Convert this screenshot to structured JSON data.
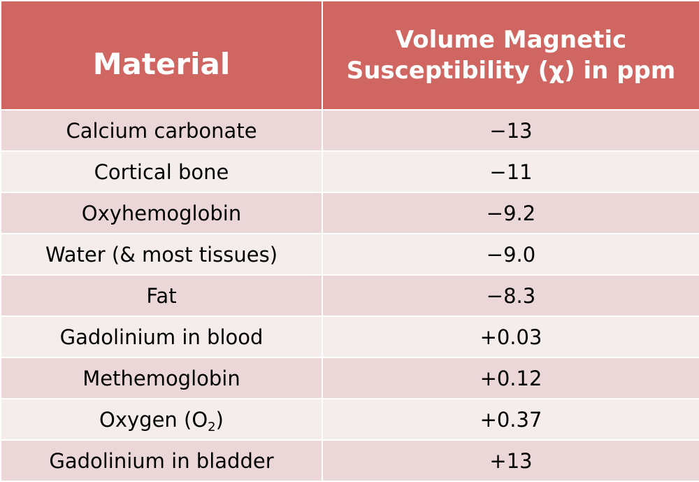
{
  "table": {
    "headers": {
      "material": "Material",
      "susceptibility_line1": "Volume Magnetic",
      "susceptibility_line2": "Susceptibility (χ) in ppm"
    },
    "rows": [
      {
        "material": "Calcium carbonate",
        "value": "−13"
      },
      {
        "material": "Cortical bone",
        "value": "−11"
      },
      {
        "material": "Oxyhemoglobin",
        "value": "−9.2"
      },
      {
        "material": "Water (& most tissues)",
        "value": "−9.0"
      },
      {
        "material": "Fat",
        "value": "−8.3"
      },
      {
        "material": "Gadolinium in blood",
        "value": "+0.03"
      },
      {
        "material": "Methemoglobin",
        "value": "+0.12"
      },
      {
        "material": "Oxygen (O₂)",
        "material_base": "Oxygen (O",
        "material_sub": "2",
        "material_close": ")",
        "value": "+0.37"
      },
      {
        "material": "Gadolinium in bladder",
        "value": "+13"
      }
    ]
  },
  "colors": {
    "header_bg": "#cf6661",
    "row_odd_bg": "#ebd7d8",
    "row_even_bg": "#f5edec",
    "header_text": "#ffffff"
  }
}
